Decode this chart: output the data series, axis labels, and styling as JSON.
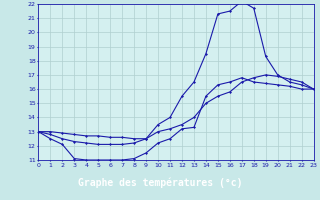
{
  "title": "Graphe des températures (°c)",
  "bg_color": "#c8e8e8",
  "plot_bg_color": "#d4f0f0",
  "line_color": "#1a1aaa",
  "grid_color": "#b0d0d0",
  "xlabel_bg": "#2244bb",
  "xlabel_fg": "#ffffff",
  "xlim": [
    0,
    23
  ],
  "ylim": [
    11,
    22
  ],
  "xticks": [
    0,
    1,
    2,
    3,
    4,
    5,
    6,
    7,
    8,
    9,
    10,
    11,
    12,
    13,
    14,
    15,
    16,
    17,
    18,
    19,
    20,
    21,
    22,
    23
  ],
  "yticks": [
    11,
    12,
    13,
    14,
    15,
    16,
    17,
    18,
    19,
    20,
    21,
    22
  ],
  "hours": [
    0,
    1,
    2,
    3,
    4,
    5,
    6,
    7,
    8,
    9,
    10,
    11,
    12,
    13,
    14,
    15,
    16,
    17,
    18,
    19,
    20,
    21,
    22,
    23
  ],
  "line1": [
    13,
    12.5,
    12.1,
    11.1,
    11.0,
    11.0,
    11.0,
    11.0,
    11.1,
    11.5,
    12.2,
    12.5,
    13.2,
    13.3,
    15.5,
    16.3,
    16.5,
    16.8,
    16.5,
    16.4,
    16.3,
    16.2,
    16.0,
    16.0
  ],
  "line2": [
    13,
    12.8,
    12.5,
    12.3,
    12.2,
    12.1,
    12.1,
    12.1,
    12.2,
    12.5,
    13.5,
    14.0,
    15.5,
    16.5,
    18.5,
    21.3,
    21.5,
    22.2,
    21.7,
    18.3,
    17.0,
    16.5,
    16.3,
    16.0
  ],
  "line3": [
    13,
    13.0,
    12.9,
    12.8,
    12.7,
    12.7,
    12.6,
    12.6,
    12.5,
    12.5,
    13.0,
    13.2,
    13.5,
    14.0,
    15.0,
    15.5,
    15.8,
    16.5,
    16.8,
    17.0,
    16.9,
    16.7,
    16.5,
    16.0
  ]
}
